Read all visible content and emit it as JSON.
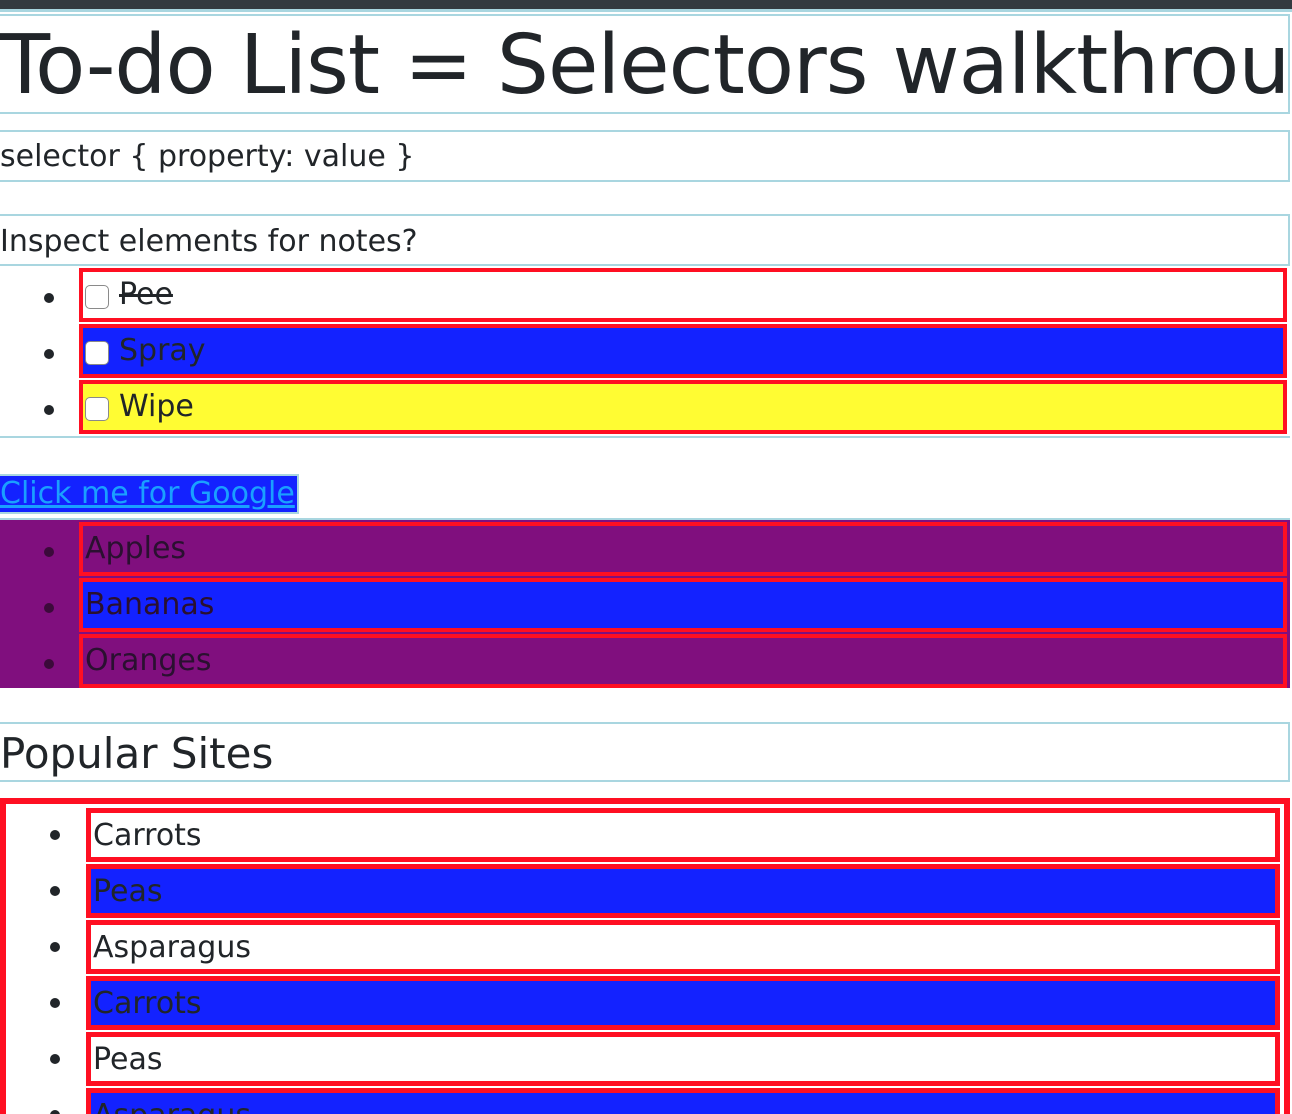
{
  "page_title": "To-do List = Selectors walkthrough",
  "syntax_text": "selector { property: value }",
  "inspect_text": "Inspect elements for notes?",
  "todos": [
    {
      "label": "Pee",
      "checked": false,
      "done": true,
      "bg": "#ffffff"
    },
    {
      "label": "Spray",
      "checked": false,
      "done": false,
      "bg": "#1322ff"
    },
    {
      "label": "Wipe",
      "checked": false,
      "done": false,
      "bg": "#fffc33"
    }
  ],
  "link_text": "Click me for Google",
  "fruits": [
    {
      "label": "Apples",
      "bg": "#800f7e"
    },
    {
      "label": "Bananas",
      "bg": "#1322ff"
    },
    {
      "label": "Oranges",
      "bg": "#800f7e"
    }
  ],
  "sites_heading": "Popular Sites",
  "vegetables": [
    {
      "label": "Carrots",
      "bg": "#ffffff"
    },
    {
      "label": "Peas",
      "bg": "#1322ff"
    },
    {
      "label": "Asparagus",
      "bg": "#ffffff"
    },
    {
      "label": "Carrots",
      "bg": "#1322ff"
    },
    {
      "label": "Peas",
      "bg": "#ffffff"
    },
    {
      "label": "Asparagus",
      "bg": "#1322ff"
    }
  ],
  "colors": {
    "border_red": "#ff0f22",
    "border_lightblue": "#a9d6e0",
    "blue": "#1322ff",
    "purple": "#800f7e",
    "yellow": "#fffc33",
    "link": "#1aa0ff"
  }
}
